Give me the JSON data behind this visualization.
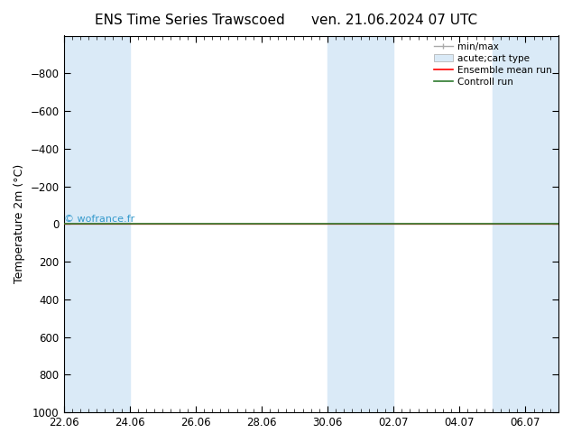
{
  "title_left": "ENS Time Series Trawscoed",
  "title_right": "ven. 21.06.2024 07 UTC",
  "ylabel": "Temperature 2m (°C)",
  "ylim_top": -1000,
  "ylim_bottom": 1000,
  "yticks": [
    -800,
    -600,
    -400,
    -200,
    0,
    200,
    400,
    600,
    800,
    1000
  ],
  "xtick_labels": [
    "22.06",
    "24.06",
    "26.06",
    "28.06",
    "30.06",
    "02.07",
    "04.07",
    "06.07"
  ],
  "x_values": [
    0,
    2,
    4,
    6,
    8,
    10,
    12,
    14
  ],
  "xlim": [
    0,
    15
  ],
  "background_color": "#ffffff",
  "plot_bg_color": "#ffffff",
  "shaded_band_color": "#daeaf7",
  "shaded_x_pairs": [
    [
      0,
      1
    ],
    [
      1,
      2
    ],
    [
      8,
      9
    ],
    [
      9,
      10
    ],
    [
      13,
      14
    ],
    [
      14,
      15
    ]
  ],
  "hline_y": 0,
  "ensemble_mean_color": "#ff0000",
  "control_run_color": "#2d7a2d",
  "minmax_color": "#aaaaaa",
  "watermark_text": "© wofrance.fr",
  "watermark_color": "#3399cc",
  "title_fontsize": 11,
  "label_fontsize": 9,
  "tick_fontsize": 8.5,
  "legend_fontsize": 7.5
}
